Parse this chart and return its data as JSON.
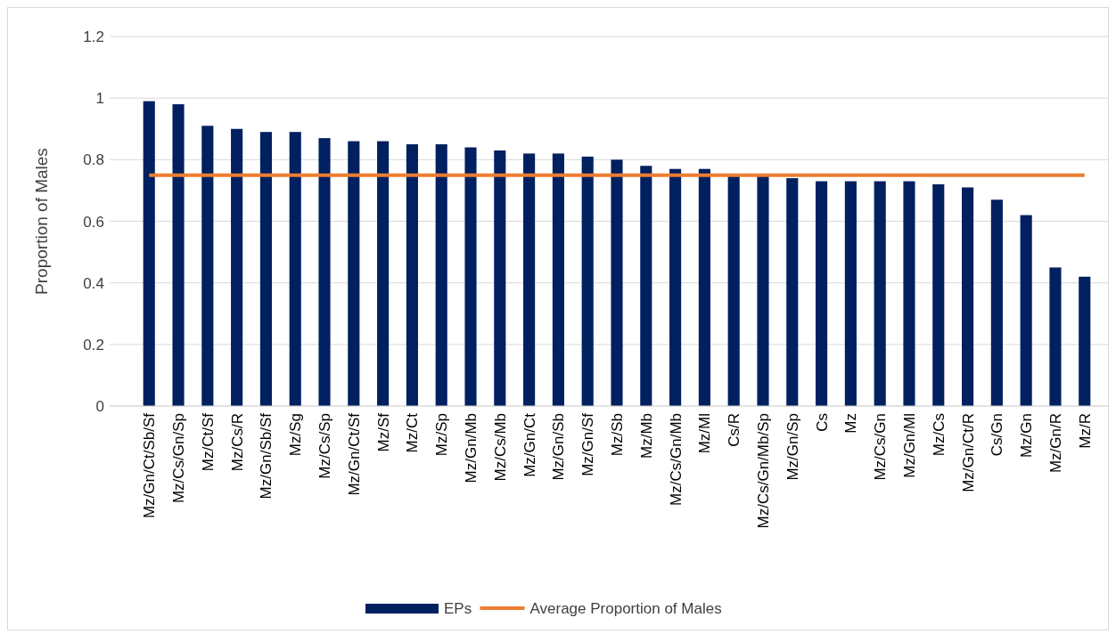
{
  "chart_data": {
    "type": "bar",
    "ylabel": "Proportion of Males",
    "categories": [
      "Mz/Gn/Ct/Sb/Sf",
      "Mz/Cs/Gn/Sp",
      "Mz/Ct/Sf",
      "Mz/Cs/R",
      "Mz/Gn/Sb/Sf",
      "Mz/Sg",
      "Mz/Cs/Sp",
      "Mz/Gn/Ct/Sf",
      "Mz/Sf",
      "Mz/Ct",
      "Mz/Sp",
      "Mz/Gn/Mb",
      "Mz/Cs/Mb",
      "Mz/Gn/Ct",
      "Mz/Gn/Sb",
      "Mz/Gn/Sf",
      "Mz/Sb",
      "Mz/Mb",
      "Mz/Cs/Gn/Mb",
      "Mz/Ml",
      "Cs/R",
      "Mz/Cs/Gn/Mb/Sp",
      "Mz/Gn/Sp",
      "Cs",
      "Mz",
      "Mz/Cs/Gn",
      "Mz/Gn/Ml",
      "Mz/Cs",
      "Mz/Gn/Ct/R",
      "Cs/Gn",
      "Mz/Gn",
      "Mz/Gn/R",
      "Mz/R"
    ],
    "series": [
      {
        "name": "EPs",
        "color": "#002060",
        "values": [
          0.99,
          0.98,
          0.91,
          0.9,
          0.89,
          0.89,
          0.87,
          0.86,
          0.86,
          0.85,
          0.85,
          0.84,
          0.83,
          0.82,
          0.82,
          0.81,
          0.8,
          0.78,
          0.77,
          0.77,
          0.75,
          0.75,
          0.74,
          0.73,
          0.73,
          0.73,
          0.73,
          0.72,
          0.71,
          0.67,
          0.62,
          0.45,
          0.42
        ]
      },
      {
        "name": "Average Proportion of Males",
        "type": "line",
        "color": "#ed7d31",
        "values": [
          0.75,
          0.75,
          0.75,
          0.75,
          0.75,
          0.75,
          0.75,
          0.75,
          0.75,
          0.75,
          0.75,
          0.75,
          0.75,
          0.75,
          0.75,
          0.75,
          0.75,
          0.75,
          0.75,
          0.75,
          0.75,
          0.75,
          0.75,
          0.75,
          0.75,
          0.75,
          0.75,
          0.75,
          0.75,
          0.75,
          0.75,
          0.75,
          0.75
        ]
      }
    ],
    "ylim": [
      0,
      1.2
    ],
    "yticks": [
      0,
      0.2,
      0.4,
      0.6,
      0.8,
      1,
      1.2
    ],
    "grid": "y",
    "legend": "bottom"
  }
}
